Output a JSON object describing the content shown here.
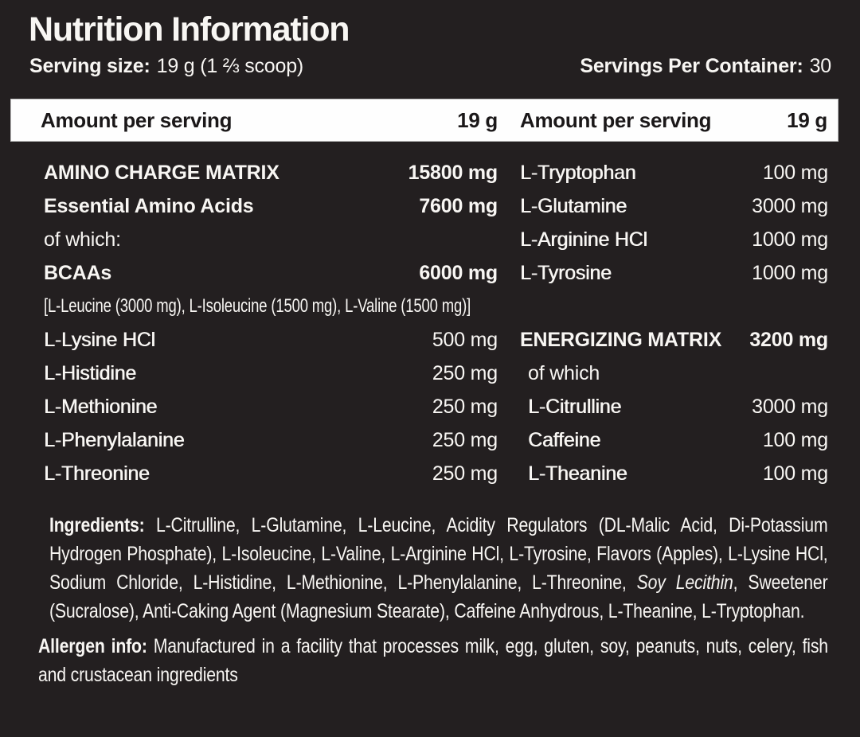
{
  "title": "Nutrition Information",
  "serving": {
    "size_label": "Serving size:",
    "size_value": "19 g (1 ⅔ scoop)",
    "per_container_label": "Servings Per Container:",
    "per_container_value": "30"
  },
  "table_header": {
    "left_label": "Amount per serving",
    "left_amount": "19 g",
    "right_label": "Amount per serving",
    "right_amount": "19 g"
  },
  "left_rows": [
    {
      "name": "AMINO CHARGE MATRIX",
      "value": "15800 mg",
      "style": "matrix"
    },
    {
      "name": "Essential Amino Acids",
      "value": "7600 mg",
      "style": "matrix"
    },
    {
      "name": "of which:",
      "value": "",
      "style": "plain"
    },
    {
      "name": "BCAAs",
      "value": "6000 mg",
      "style": "matrix"
    },
    {
      "name": "[L-Leucine (3000 mg), L-Isoleucine (1500 mg), L-Valine (1500 mg)]",
      "value": "",
      "style": "span"
    },
    {
      "name": "L-Lysine HCl",
      "value": "500 mg",
      "style": "item"
    },
    {
      "name": "L-Histidine",
      "value": "250 mg",
      "style": "item"
    },
    {
      "name": "L-Methionine",
      "value": "250 mg",
      "style": "item"
    },
    {
      "name": "L-Phenylalanine",
      "value": "250 mg",
      "style": "item"
    },
    {
      "name": "L-Threonine",
      "value": "250 mg",
      "style": "item"
    }
  ],
  "right_rows": [
    {
      "name": "L-Tryptophan",
      "value": "100 mg",
      "style": "item"
    },
    {
      "name": "L-Glutamine",
      "value": "3000 mg",
      "style": "item"
    },
    {
      "name": "L-Arginine HCl",
      "value": "1000 mg",
      "style": "item"
    },
    {
      "name": "L-Tyrosine",
      "value": "1000 mg",
      "style": "item"
    },
    {
      "name": "",
      "value": "",
      "style": "empty"
    },
    {
      "name": "ENERGIZING MATRIX",
      "value": "3200 mg",
      "style": "matrix"
    },
    {
      "name": "of which",
      "value": "",
      "style": "plain-indent"
    },
    {
      "name": "L-Citrulline",
      "value": "3000 mg",
      "style": "item-indent"
    },
    {
      "name": "Caffeine",
      "value": "100 mg",
      "style": "item-indent"
    },
    {
      "name": "L-Theanine",
      "value": "100 mg",
      "style": "item-indent"
    }
  ],
  "ingredients": {
    "label": "Ingredients:",
    "text_before_italic": " L-Citrulline, L-Glutamine, L-Leucine, Acidity Regulators (DL-Malic Acid, Di-Potassium Hydrogen Phosphate), L-Isoleucine, L-Valine, L-Arginine HCl, L-Tyrosine, Flavors (Apples), L-Lysine HCl, Sodium Chloride, L-Histidine, L-Methionine, L-Phenylalanine, L-Threonine, ",
    "italic": "Soy Lecithin",
    "text_after_italic": ", Sweetener (Sucralose), Anti-Caking Agent (Magnesium Stearate), Caffeine Anhydrous, L-Theanine, L-Tryptophan."
  },
  "allergen": {
    "label": "Allergen info:",
    "text": " Manufactured in a facility that processes milk, egg, gluten, soy, peanuts, nuts, celery, fish and crustacean ingredients"
  },
  "colors": {
    "background": "#231f20",
    "bar_background": "#fefefe",
    "bar_text": "#1b1819",
    "text": "#f8f6f3"
  }
}
